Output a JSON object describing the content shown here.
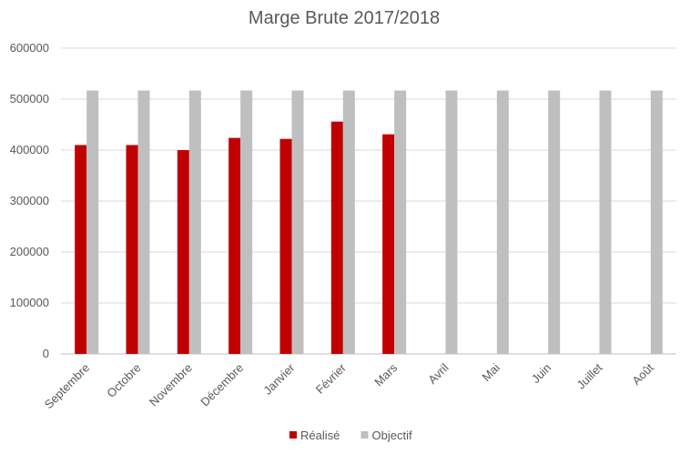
{
  "chart_data": {
    "type": "bar",
    "title": "Marge Brute 2017/2018",
    "xlabel": "",
    "ylabel": "",
    "ylim": [
      0,
      600000
    ],
    "yticks": [
      0,
      100000,
      200000,
      300000,
      400000,
      500000,
      600000
    ],
    "grid": true,
    "legend_position": "bottom",
    "categories": [
      "Septembre",
      "Octobre",
      "Novembre",
      "Décembre",
      "Janvier",
      "Février",
      "Mars",
      "Avril",
      "Mai",
      "Juin",
      "Juillet",
      "Août"
    ],
    "series": [
      {
        "name": "Réalisé",
        "color": "#c00000",
        "values": [
          410000,
          410000,
          400000,
          424000,
          422000,
          456000,
          431000,
          null,
          null,
          null,
          null,
          null
        ]
      },
      {
        "name": "Objectif",
        "color": "#bfbfbf",
        "values": [
          517000,
          517000,
          517000,
          517000,
          517000,
          517000,
          517000,
          517000,
          517000,
          517000,
          517000,
          517000
        ]
      }
    ]
  }
}
